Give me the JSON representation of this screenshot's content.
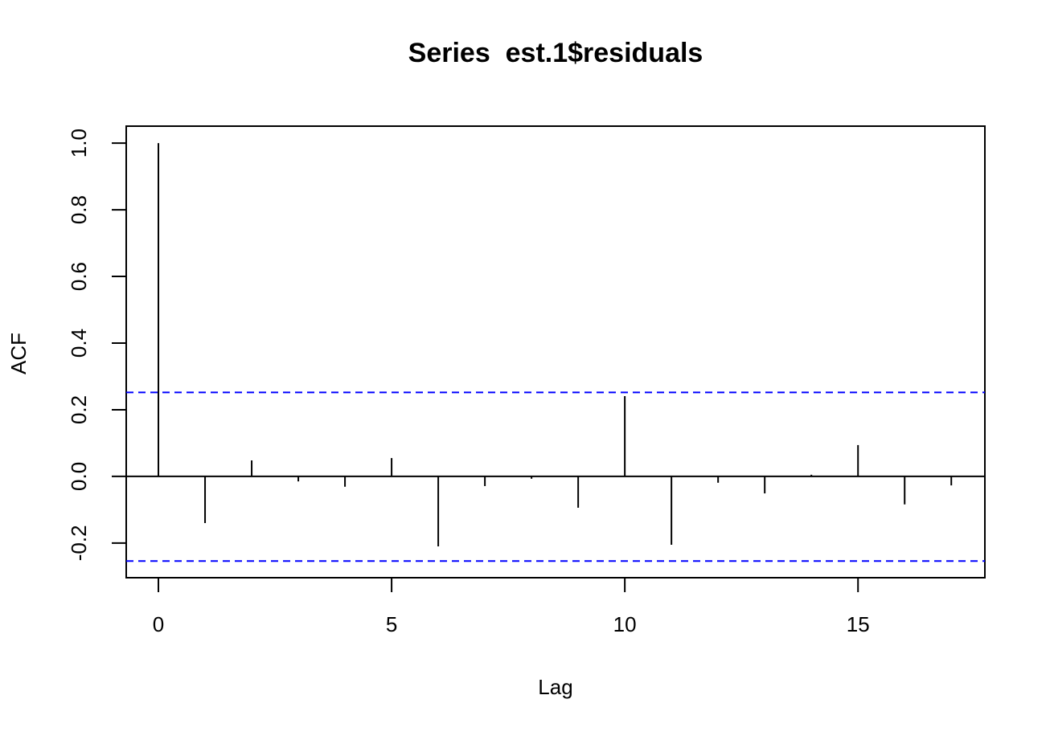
{
  "chart_data": {
    "type": "stem",
    "title": "Series  est.1$residuals",
    "x_label": "Lag",
    "y_label": "ACF",
    "x": [
      0,
      1,
      2,
      3,
      4,
      5,
      6,
      7,
      8,
      9,
      10,
      11,
      12,
      13,
      14,
      15,
      16,
      17
    ],
    "values": [
      1.0,
      -0.14,
      0.048,
      -0.015,
      -0.031,
      0.055,
      -0.21,
      -0.029,
      -0.007,
      -0.094,
      0.241,
      -0.205,
      -0.019,
      -0.051,
      0.005,
      0.094,
      -0.084,
      -0.027
    ],
    "color": "#000000",
    "confidence_bounds": [
      0.252,
      -0.254
    ],
    "confidence_color": "#0000ff",
    "xlim": [
      -0.69,
      17.72
    ],
    "ylim": [
      -0.304,
      1.051
    ],
    "xticks": [
      0,
      5,
      10,
      15
    ],
    "yticks": [
      {
        "value": -0.2,
        "label": "-0.2"
      },
      {
        "value": 0,
        "label": "0.0"
      },
      {
        "value": 0.2,
        "label": "0.2"
      },
      {
        "value": 0.4,
        "label": "0.4"
      },
      {
        "value": 0.6,
        "label": "0.6"
      },
      {
        "value": 0.8,
        "label": "0.8"
      },
      {
        "value": 1,
        "label": "1.0"
      }
    ]
  }
}
